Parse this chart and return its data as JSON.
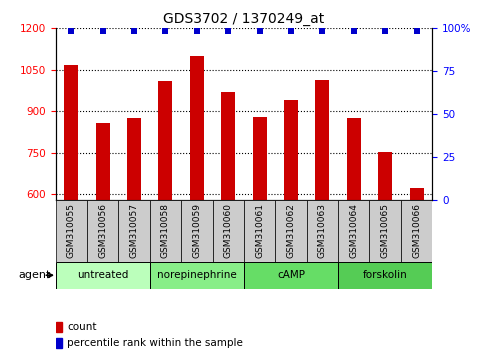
{
  "title": "GDS3702 / 1370249_at",
  "samples": [
    "GSM310055",
    "GSM310056",
    "GSM310057",
    "GSM310058",
    "GSM310059",
    "GSM310060",
    "GSM310061",
    "GSM310062",
    "GSM310063",
    "GSM310064",
    "GSM310065",
    "GSM310066"
  ],
  "counts": [
    1068,
    858,
    875,
    1010,
    1100,
    970,
    880,
    940,
    1015,
    875,
    755,
    622
  ],
  "percentile_ranks": [
    99,
    99,
    99,
    99,
    99,
    99,
    99,
    99,
    99,
    99,
    99,
    99
  ],
  "ylim_left": [
    580,
    1200
  ],
  "ylim_right": [
    0,
    100
  ],
  "yticks_left": [
    600,
    750,
    900,
    1050,
    1200
  ],
  "yticks_right": [
    0,
    25,
    50,
    75,
    100
  ],
  "agents": [
    {
      "label": "untreated",
      "start": 0,
      "end": 3,
      "color": "#bbffbb"
    },
    {
      "label": "norepinephrine",
      "start": 3,
      "end": 6,
      "color": "#88ee88"
    },
    {
      "label": "cAMP",
      "start": 6,
      "end": 9,
      "color": "#66dd66"
    },
    {
      "label": "forskolin",
      "start": 9,
      "end": 12,
      "color": "#55cc55"
    }
  ],
  "bar_color": "#cc0000",
  "scatter_color": "#0000cc",
  "sample_bg_color": "#cccccc",
  "bar_width": 0.45,
  "pct_value": 98.5
}
